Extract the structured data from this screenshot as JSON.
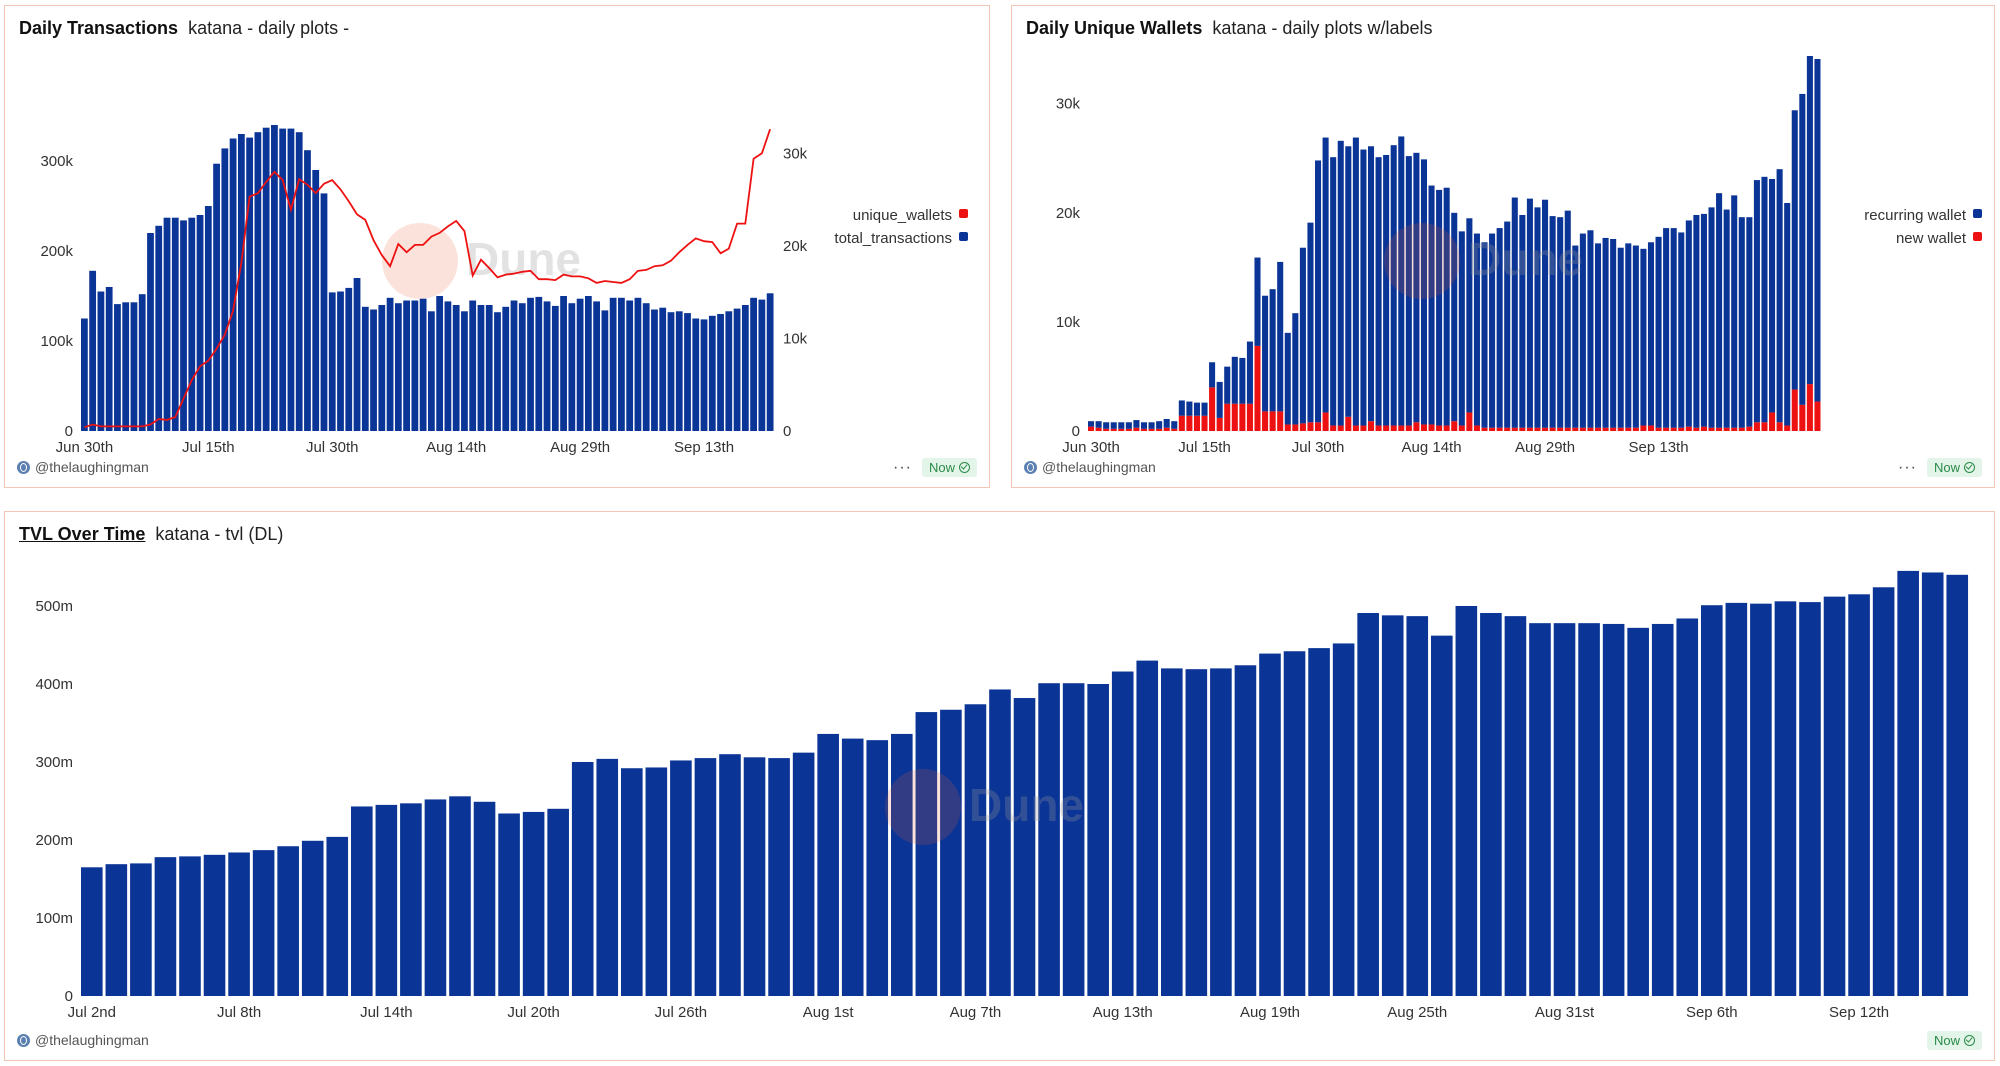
{
  "colors": {
    "bar": "#0a3495",
    "line": "#ee1111",
    "red": "#ee1111",
    "border": "#f3c6b6"
  },
  "credit": "@thelaughingman",
  "status": "Now",
  "watermark": "Dune",
  "tx_panel": {
    "title": "Daily Transactions",
    "subtitle": "katana - daily plots -"
  },
  "wallet_panel": {
    "title": "Daily Unique Wallets",
    "subtitle": "katana - daily plots w/labels"
  },
  "tvl_panel": {
    "title": "TVL Over Time",
    "subtitle": "katana - tvl (DL)"
  },
  "chart_data": [
    {
      "type": "bar",
      "title": "Daily Transactions",
      "x_tick_labels": [
        "Jun 30th",
        "Jul 15th",
        "Jul 30th",
        "Aug 14th",
        "Aug 29th",
        "Sep 13th"
      ],
      "y_left_ticks": [
        "0",
        "100k",
        "200k",
        "300k"
      ],
      "y_right_ticks": [
        "0",
        "10k",
        "20k",
        "30k"
      ],
      "ylim_left": [
        0,
        400000
      ],
      "ylim_right": [
        0,
        38888
      ],
      "legend_position": "right",
      "series": [
        {
          "name": "unique_wallets",
          "kind": "line",
          "axis": "right",
          "values": [
            400,
            700,
            500,
            500,
            500,
            500,
            500,
            500,
            700,
            1300,
            1200,
            1500,
            3500,
            5500,
            7000,
            7600,
            8900,
            10400,
            13000,
            18200,
            25300,
            25700,
            26900,
            28000,
            27100,
            23900,
            27200,
            26600,
            25700,
            26700,
            27100,
            26100,
            24800,
            23400,
            22800,
            20600,
            19000,
            17800,
            20200,
            19300,
            20100,
            20100,
            21000,
            21400,
            22100,
            22700,
            21600,
            16800,
            18500,
            17600,
            16600,
            16900,
            17000,
            17200,
            17300,
            16400,
            16400,
            16300,
            16900,
            16700,
            16700,
            16500,
            16000,
            16200,
            16100,
            16000,
            16400,
            17300,
            17400,
            17800,
            17900,
            18400,
            19300,
            20100,
            20800,
            20500,
            20400,
            19200,
            19700,
            22400,
            22400,
            29400,
            30000,
            32600
          ]
        },
        {
          "name": "total_transactions",
          "kind": "bar",
          "axis": "left",
          "values": [
            125000,
            178000,
            155000,
            160000,
            141000,
            143000,
            143000,
            152000,
            220000,
            228000,
            237000,
            237000,
            234000,
            237000,
            240000,
            250000,
            297000,
            314000,
            325000,
            330000,
            326000,
            332000,
            337000,
            340000,
            336000,
            336000,
            332000,
            312000,
            290000,
            264000,
            154000,
            155000,
            159000,
            170000,
            138000,
            135000,
            140000,
            148000,
            142000,
            145000,
            145000,
            147000,
            133000,
            150000,
            144000,
            140000,
            133000,
            145000,
            140000,
            140000,
            132000,
            138000,
            145000,
            142000,
            148000,
            149000,
            144000,
            139000,
            150000,
            142000,
            147000,
            150000,
            144000,
            134000,
            148000,
            148000,
            145000,
            148000,
            142000,
            135000,
            137000,
            132000,
            133000,
            131000,
            125000,
            124000,
            128000,
            130000,
            133000,
            136000,
            140000,
            148000,
            146000,
            153000
          ]
        }
      ]
    },
    {
      "type": "bar",
      "title": "Daily Unique Wallets",
      "x_tick_labels": [
        "Jun 30th",
        "Jul 15th",
        "Jul 30th",
        "Aug 14th",
        "Aug 29th",
        "Sep 13th"
      ],
      "y_ticks": [
        "0",
        "10k",
        "20k",
        "30k"
      ],
      "ylim": [
        0,
        33000
      ],
      "stacked": true,
      "legend_position": "right",
      "series": [
        {
          "name": "recurring wallet",
          "values": [
            500,
            600,
            600,
            600,
            600,
            600,
            700,
            600,
            600,
            700,
            800,
            700,
            1400,
            1300,
            1200,
            1200,
            2300,
            3300,
            3400,
            4300,
            4200,
            5700,
            8100,
            10600,
            11200,
            13700,
            8400,
            10200,
            16100,
            18300,
            24000,
            25200,
            24600,
            26100,
            24800,
            26400,
            25300,
            25200,
            24600,
            24800,
            25700,
            26500,
            24700,
            24700,
            24300,
            21900,
            21600,
            21800,
            19100,
            17800,
            17800,
            17600,
            17000,
            17800,
            18300,
            18900,
            21100,
            19500,
            21000,
            20200,
            20900,
            19400,
            19300,
            19900,
            16700,
            17800,
            18100,
            16900,
            17400,
            17300,
            16500,
            16900,
            16700,
            16200,
            16800,
            17500,
            18300,
            18300,
            17900,
            18900,
            19500,
            19500,
            20200,
            21500,
            20000,
            21300,
            19300,
            19200,
            22200,
            22500,
            21400,
            23200,
            20400,
            25600,
            28500,
            30300,
            31400
          ]
        },
        {
          "name": "new wallet",
          "values": [
            400,
            300,
            200,
            200,
            200,
            200,
            300,
            200,
            200,
            200,
            300,
            200,
            1400,
            1400,
            1400,
            1400,
            4000,
            1200,
            2500,
            2500,
            2500,
            2500,
            7800,
            1800,
            1800,
            1800,
            600,
            600,
            700,
            800,
            800,
            1700,
            500,
            500,
            1300,
            500,
            500,
            900,
            500,
            500,
            500,
            500,
            500,
            800,
            600,
            600,
            500,
            500,
            900,
            500,
            1700,
            500,
            300,
            300,
            300,
            300,
            300,
            300,
            300,
            300,
            300,
            300,
            300,
            300,
            300,
            300,
            300,
            300,
            300,
            300,
            300,
            300,
            300,
            500,
            500,
            300,
            300,
            300,
            300,
            400,
            300,
            400,
            300,
            300,
            300,
            300,
            300,
            400,
            800,
            800,
            1700,
            800,
            500,
            3800,
            2400,
            4300,
            2700
          ]
        }
      ]
    },
    {
      "type": "bar",
      "title": "TVL Over Time",
      "x_tick_labels": [
        "Jul 2nd",
        "Jul 8th",
        "Jul 14th",
        "Jul 20th",
        "Jul 26th",
        "Aug 1st",
        "Aug 7th",
        "Aug 13th",
        "Aug 19th",
        "Aug 25th",
        "Aug 31st",
        "Sep 6th",
        "Sep 12th"
      ],
      "y_ticks": [
        "0",
        "100m",
        "200m",
        "300m",
        "400m",
        "500m"
      ],
      "ylim": [
        0,
        550000000
      ],
      "values": [
        165000000,
        169000000,
        170000000,
        178000000,
        179000000,
        181000000,
        184000000,
        187000000,
        192000000,
        199000000,
        204000000,
        243000000,
        245000000,
        247000000,
        252000000,
        256000000,
        249000000,
        234000000,
        236000000,
        240000000,
        300000000,
        304000000,
        292000000,
        293000000,
        302000000,
        305000000,
        310000000,
        306000000,
        305000000,
        312000000,
        336000000,
        330000000,
        328000000,
        336000000,
        364000000,
        367000000,
        374000000,
        393000000,
        382000000,
        401000000,
        401000000,
        400000000,
        416000000,
        430000000,
        420000000,
        419000000,
        420000000,
        424000000,
        439000000,
        442000000,
        446000000,
        452000000,
        491000000,
        488000000,
        487000000,
        462000000,
        500000000,
        491000000,
        487000000,
        478000000,
        478000000,
        478000000,
        477000000,
        472000000,
        477000000,
        484000000,
        501000000,
        504000000,
        503000000,
        506000000,
        505000000,
        512000000,
        515000000,
        524000000,
        545000000,
        543000000,
        540000000
      ]
    }
  ]
}
